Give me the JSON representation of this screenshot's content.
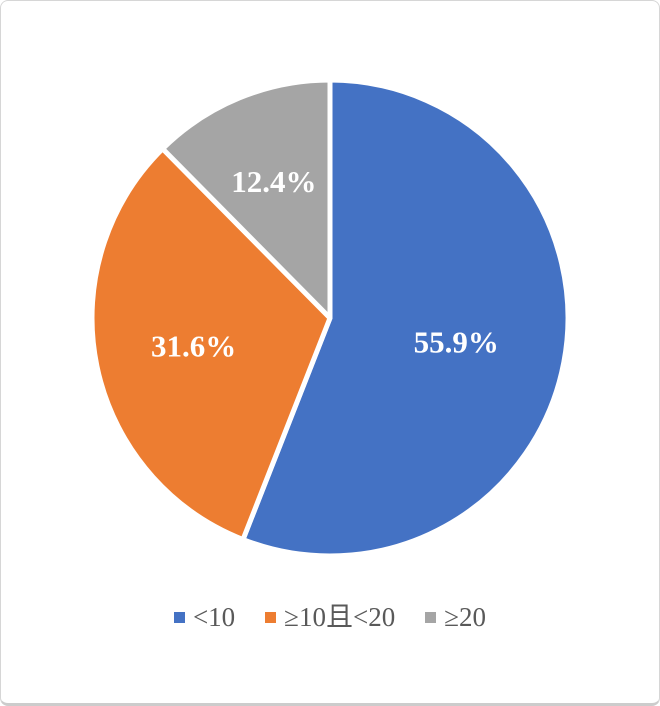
{
  "chart_data": {
    "type": "pie",
    "title": "",
    "slices": [
      {
        "name": "<10",
        "value": 55.9,
        "label": "55.9%",
        "color": "#4472C4"
      },
      {
        "name": "≥10且<20",
        "value": 31.6,
        "label": "31.6%",
        "color": "#ED7D31"
      },
      {
        "name": "≥20",
        "value": 12.4,
        "label": "12.4%",
        "color": "#A5A5A5"
      }
    ],
    "start_angle_deg": 0,
    "direction": "clockwise",
    "legend_position": "bottom",
    "data_label_color": "#FFFFFF",
    "legend_text_color": "#595959",
    "separator_color": "#FFFFFF",
    "background_color": "#FFFFFF",
    "frame_border_color": "#D6D6D6"
  }
}
